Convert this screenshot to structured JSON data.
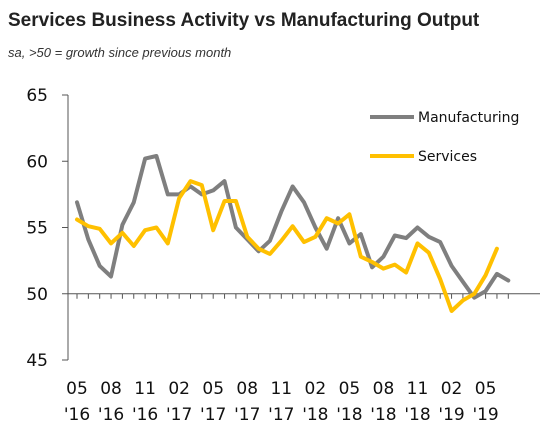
{
  "title": "Services Business Activity vs Manufacturing Output",
  "subtitle": "sa, >50 = growth since previous month",
  "colors": {
    "manufacturing": "#7f7f7f",
    "services": "#ffc000",
    "axis": "#555555"
  },
  "chart_data": {
    "type": "line",
    "title": "Services Business Activity vs Manufacturing Output",
    "subtitle": "sa, >50 = growth since previous month",
    "xlabel": "",
    "ylabel": "",
    "ylim": [
      45,
      65
    ],
    "yticks": [
      "45",
      "50",
      "55",
      "60",
      "65"
    ],
    "xticks": [
      {
        "month": "05",
        "year": "'16"
      },
      {
        "month": "08",
        "year": "'16"
      },
      {
        "month": "11",
        "year": "'16"
      },
      {
        "month": "02",
        "year": "'17"
      },
      {
        "month": "05",
        "year": "'17"
      },
      {
        "month": "08",
        "year": "'17"
      },
      {
        "month": "11",
        "year": "'17"
      },
      {
        "month": "02",
        "year": "'18"
      },
      {
        "month": "05",
        "year": "'18"
      },
      {
        "month": "08",
        "year": "'18"
      },
      {
        "month": "11",
        "year": "'18"
      },
      {
        "month": "02",
        "year": "'19"
      },
      {
        "month": "05",
        "year": "'19"
      }
    ],
    "x": [
      "2016-05",
      "2016-06",
      "2016-07",
      "2016-08",
      "2016-09",
      "2016-10",
      "2016-11",
      "2016-12",
      "2017-01",
      "2017-02",
      "2017-03",
      "2017-04",
      "2017-05",
      "2017-06",
      "2017-07",
      "2017-08",
      "2017-09",
      "2017-10",
      "2017-11",
      "2017-12",
      "2018-01",
      "2018-02",
      "2018-03",
      "2018-04",
      "2018-05",
      "2018-06",
      "2018-07",
      "2018-08",
      "2018-09",
      "2018-10",
      "2018-11",
      "2018-12",
      "2019-01",
      "2019-02",
      "2019-03",
      "2019-04",
      "2019-05",
      "2019-06",
      "2019-07"
    ],
    "grid": false,
    "legend": "top-right",
    "series": [
      {
        "name": "Manufacturing",
        "values": [
          56.9,
          54.1,
          52.1,
          51.3,
          55.2,
          56.9,
          60.2,
          60.4,
          57.5,
          57.5,
          58.1,
          57.5,
          57.8,
          58.5,
          55.0,
          54.1,
          53.2,
          54.0,
          56.2,
          58.1,
          56.9,
          55.0,
          53.4,
          55.7,
          53.8,
          54.5,
          52.0,
          52.8,
          54.4,
          54.2,
          55.0,
          54.3,
          53.9,
          52.1,
          50.9,
          49.7,
          50.2,
          51.5,
          51.0
        ]
      },
      {
        "name": "Services",
        "values": [
          55.6,
          55.1,
          54.9,
          53.8,
          54.6,
          53.6,
          54.8,
          55.0,
          53.8,
          57.2,
          58.5,
          58.2,
          54.8,
          57.0,
          57.0,
          54.3,
          53.4,
          53.0,
          54.0,
          55.1,
          53.9,
          54.3,
          55.7,
          55.3,
          56.0,
          52.8,
          52.4,
          51.9,
          52.2,
          51.6,
          53.8,
          53.1,
          51.1,
          48.7,
          49.5,
          50.0,
          51.4,
          53.4,
          null
        ]
      }
    ]
  }
}
